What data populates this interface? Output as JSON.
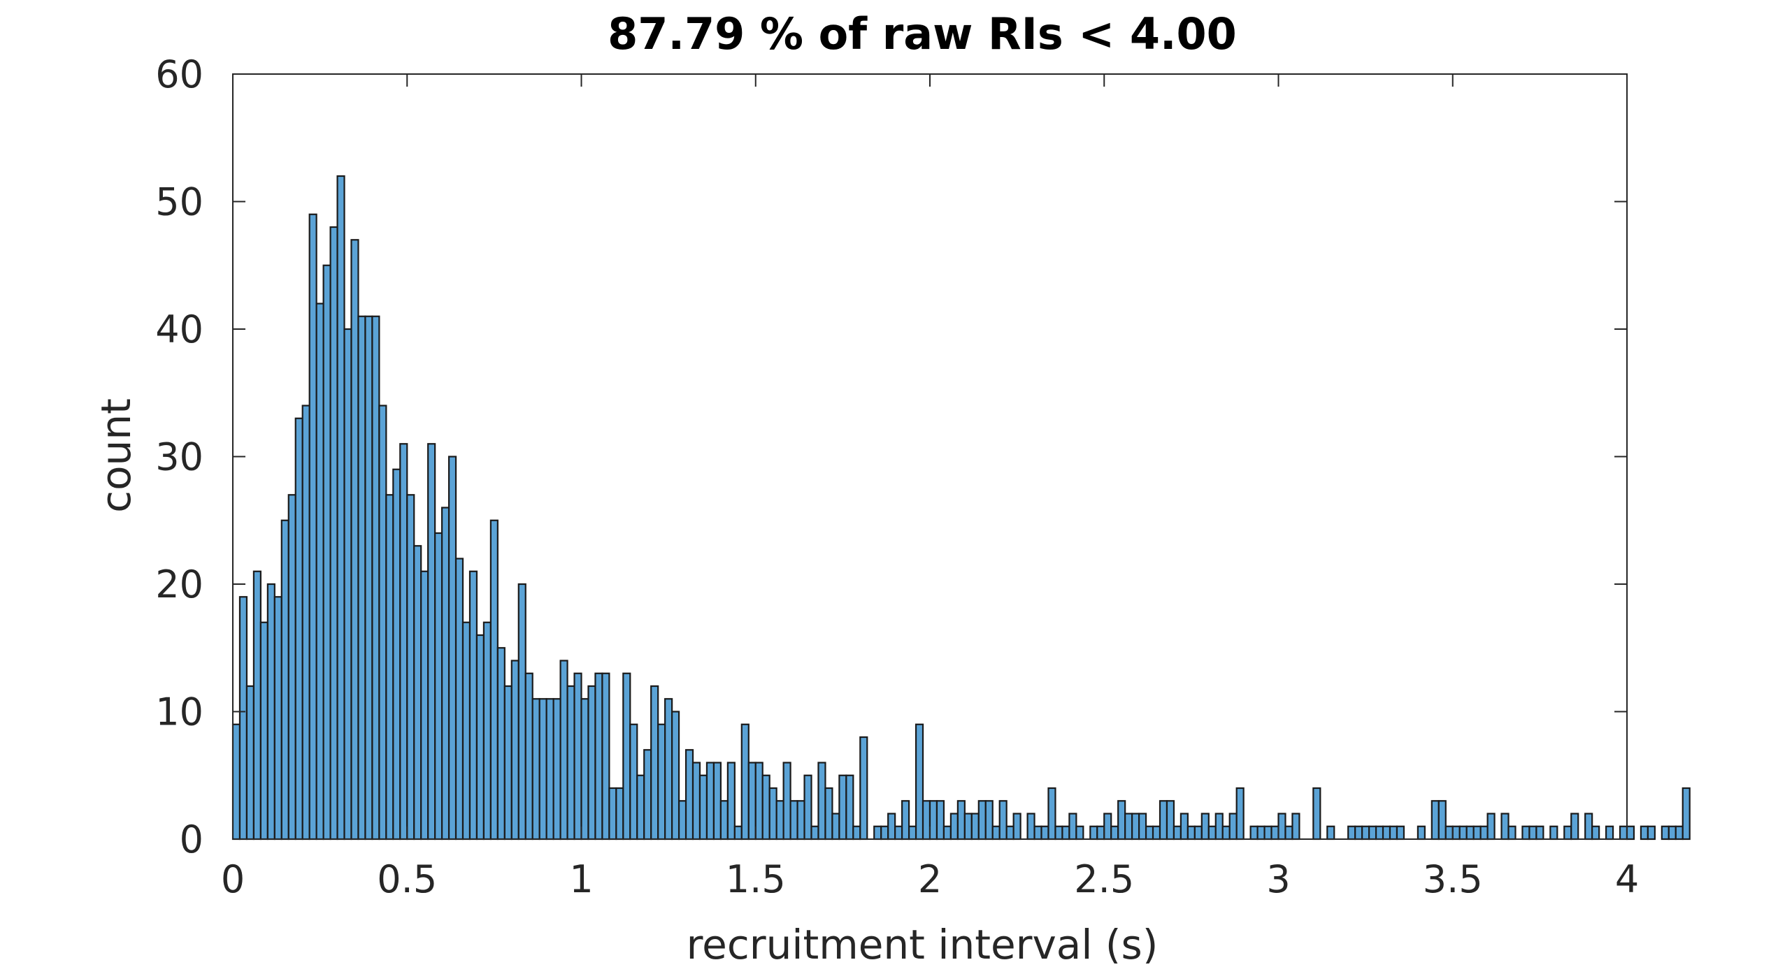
{
  "chart_data": {
    "type": "bar",
    "title": "87.79 % of raw RIs < 4.00",
    "xlabel": "recruitment interval (s)",
    "ylabel": "count",
    "xlim": [
      0,
      4
    ],
    "ylim": [
      0,
      60
    ],
    "xticks": [
      "0",
      "0.5",
      "1",
      "1.5",
      "2",
      "2.5",
      "3",
      "3.5",
      "4"
    ],
    "yticks": [
      "0",
      "10",
      "20",
      "30",
      "40",
      "50",
      "60"
    ],
    "grid": false,
    "bin_width": 0.02,
    "bin_start": 0,
    "bar_color": "#5ba3d6",
    "edge_color": "#1a1a1a",
    "values": [
      9,
      19,
      12,
      21,
      17,
      20,
      19,
      25,
      27,
      33,
      34,
      49,
      42,
      45,
      48,
      52,
      40,
      47,
      41,
      41,
      41,
      34,
      27,
      29,
      31,
      27,
      23,
      21,
      31,
      24,
      26,
      30,
      22,
      17,
      21,
      16,
      17,
      25,
      15,
      12,
      14,
      20,
      13,
      11,
      11,
      11,
      11,
      14,
      12,
      13,
      11,
      12,
      13,
      13,
      4,
      4,
      13,
      9,
      5,
      7,
      12,
      9,
      11,
      10,
      3,
      7,
      6,
      5,
      6,
      6,
      3,
      6,
      1,
      9,
      6,
      6,
      5,
      4,
      3,
      6,
      3,
      3,
      5,
      1,
      6,
      4,
      2,
      5,
      5,
      1,
      8,
      0,
      1,
      1,
      2,
      1,
      3,
      1,
      9,
      3,
      3,
      3,
      1,
      2,
      3,
      2,
      2,
      3,
      3,
      1,
      3,
      1,
      2,
      0,
      2,
      1,
      1,
      4,
      1,
      1,
      2,
      1,
      0,
      1,
      1,
      2,
      1,
      3,
      2,
      2,
      2,
      1,
      1,
      3,
      3,
      1,
      2,
      1,
      1,
      2,
      1,
      2,
      1,
      2,
      4,
      0,
      1,
      1,
      1,
      1,
      2,
      1,
      2,
      0,
      0,
      4,
      0,
      1,
      0,
      0,
      1,
      1,
      1,
      1,
      1,
      1,
      1,
      1,
      0,
      0,
      1,
      0,
      3,
      3,
      1,
      1,
      1,
      1,
      1,
      1,
      2,
      0,
      2,
      1,
      0,
      1,
      1,
      1,
      0,
      1,
      0,
      1,
      2,
      0,
      2,
      1,
      0,
      1,
      0,
      1,
      1,
      0,
      1,
      1,
      0,
      1,
      1,
      1,
      4
    ]
  }
}
